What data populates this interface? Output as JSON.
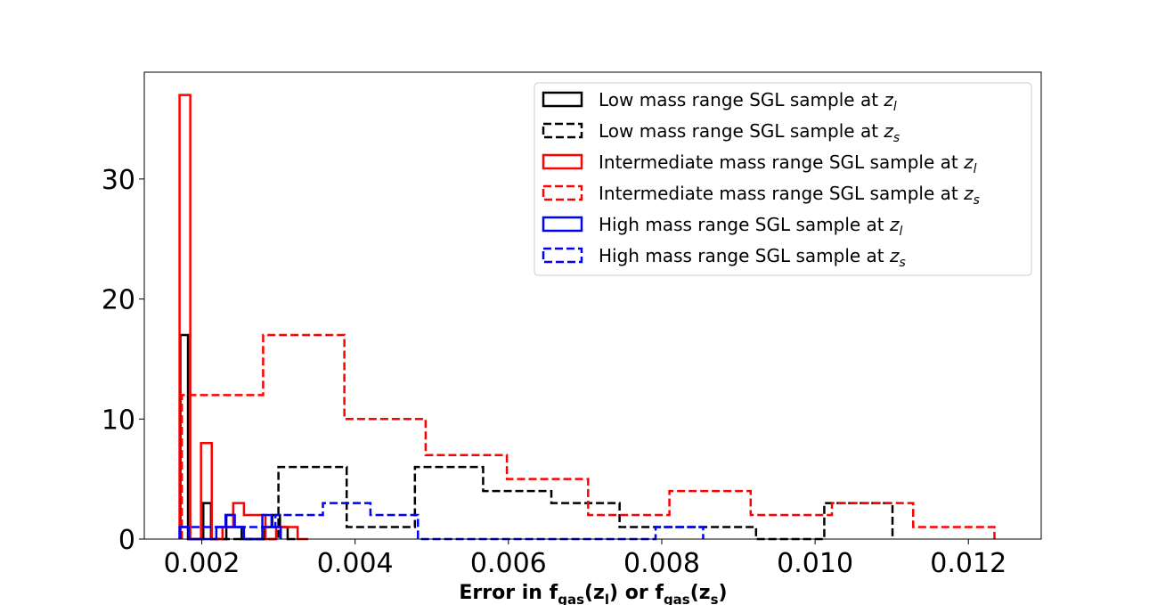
{
  "chart_data": {
    "type": "histogram",
    "title": "",
    "xlabel": {
      "prefix": "Error in f",
      "sub1": "gas",
      "mid1": "(z",
      "sub2": "l",
      "mid2": ") or f",
      "sub3": "gas",
      "mid3": "(z",
      "sub4": "s",
      "suffix": ")"
    },
    "ylabel": "",
    "xlim": [
      0.00125,
      0.01295
    ],
    "ylim": [
      0,
      38.9
    ],
    "xticks": [
      {
        "value": 0.002,
        "label": "0.002"
      },
      {
        "value": 0.004,
        "label": "0.004"
      },
      {
        "value": 0.006,
        "label": "0.006"
      },
      {
        "value": 0.008,
        "label": "0.008"
      },
      {
        "value": 0.01,
        "label": "0.010"
      },
      {
        "value": 0.012,
        "label": "0.012"
      }
    ],
    "yticks": [
      {
        "value": 0,
        "label": "0"
      },
      {
        "value": 10,
        "label": "10"
      },
      {
        "value": 20,
        "label": "20"
      },
      {
        "value": 30,
        "label": "30"
      }
    ],
    "legend_position": "top-right",
    "series": [
      {
        "name": "Low mass range SGL sample at z_l",
        "label_text": "Low mass range SGL sample at ",
        "label_var": "z",
        "label_sub": "l",
        "color": "#000000",
        "dashed": false,
        "bin_edges": [
          0.00172,
          0.00182,
          0.00192,
          0.00202,
          0.00212,
          0.00222,
          0.00232,
          0.00242,
          0.00252,
          0.00262,
          0.00272,
          0.00282,
          0.00292,
          0.00302,
          0.00312,
          0.00322
        ],
        "counts": [
          17,
          0,
          0,
          3,
          0,
          0,
          2,
          1,
          0,
          0,
          0,
          1,
          2,
          1,
          0
        ]
      },
      {
        "name": "Low mass range SGL sample at z_s",
        "label_text": "Low mass range SGL sample at ",
        "label_var": "z",
        "label_sub": "s",
        "color": "#000000",
        "dashed": true,
        "bin_edges": [
          0.00211,
          0.003,
          0.00389,
          0.00478,
          0.00567,
          0.00656,
          0.00745,
          0.00834,
          0.00923,
          0.01012,
          0.01101
        ],
        "counts": [
          0,
          6,
          1,
          6,
          4,
          3,
          1,
          1,
          0,
          3
        ]
      },
      {
        "name": "Intermediate mass range SGL sample at z_l",
        "label_text": "Intermediate mass range SGL sample at ",
        "label_var": "z",
        "label_sub": "l",
        "color": "#ff0000",
        "dashed": false,
        "bin_edges": [
          0.00171,
          0.00185,
          0.00199,
          0.00213,
          0.00227,
          0.00241,
          0.00255,
          0.00269,
          0.00283,
          0.00297,
          0.00311,
          0.00325,
          0.00339
        ],
        "counts": [
          37,
          0,
          8,
          0,
          1,
          3,
          2,
          2,
          0,
          1,
          1,
          0
        ]
      },
      {
        "name": "Intermediate mass range SGL sample at z_s",
        "label_text": "Intermediate mass range SGL sample at ",
        "label_var": "z",
        "label_sub": "s",
        "color": "#ff0000",
        "dashed": true,
        "bin_edges": [
          0.00174,
          0.0028,
          0.00386,
          0.00492,
          0.00598,
          0.00704,
          0.0081,
          0.00916,
          0.01022,
          0.01128,
          0.01234
        ],
        "counts": [
          12,
          17,
          10,
          7,
          5,
          2,
          4,
          2,
          3,
          1
        ]
      },
      {
        "name": "High mass range SGL sample at z_l",
        "label_text": "High mass range SGL sample at ",
        "label_var": "z",
        "label_sub": "l",
        "color": "#0000ff",
        "dashed": false,
        "bin_edges": [
          0.00171,
          0.00183,
          0.00195,
          0.00207,
          0.00219,
          0.00231,
          0.00243,
          0.00255,
          0.00267,
          0.00279,
          0.00291,
          0.00303
        ],
        "counts": [
          1,
          0,
          0,
          0,
          1,
          2,
          1,
          0,
          0,
          2,
          1
        ]
      },
      {
        "name": "High mass range SGL sample at z_s",
        "label_text": "High mass range SGL sample at ",
        "label_var": "z",
        "label_sub": "s",
        "color": "#0000ff",
        "dashed": true,
        "bin_edges": [
          0.00172,
          0.00234,
          0.00296,
          0.00358,
          0.0042,
          0.00482,
          0.00544,
          0.00606,
          0.00668,
          0.0073,
          0.00792,
          0.00854
        ],
        "counts": [
          1,
          1,
          2,
          3,
          2,
          0,
          0,
          0,
          0,
          0,
          1
        ]
      }
    ]
  }
}
